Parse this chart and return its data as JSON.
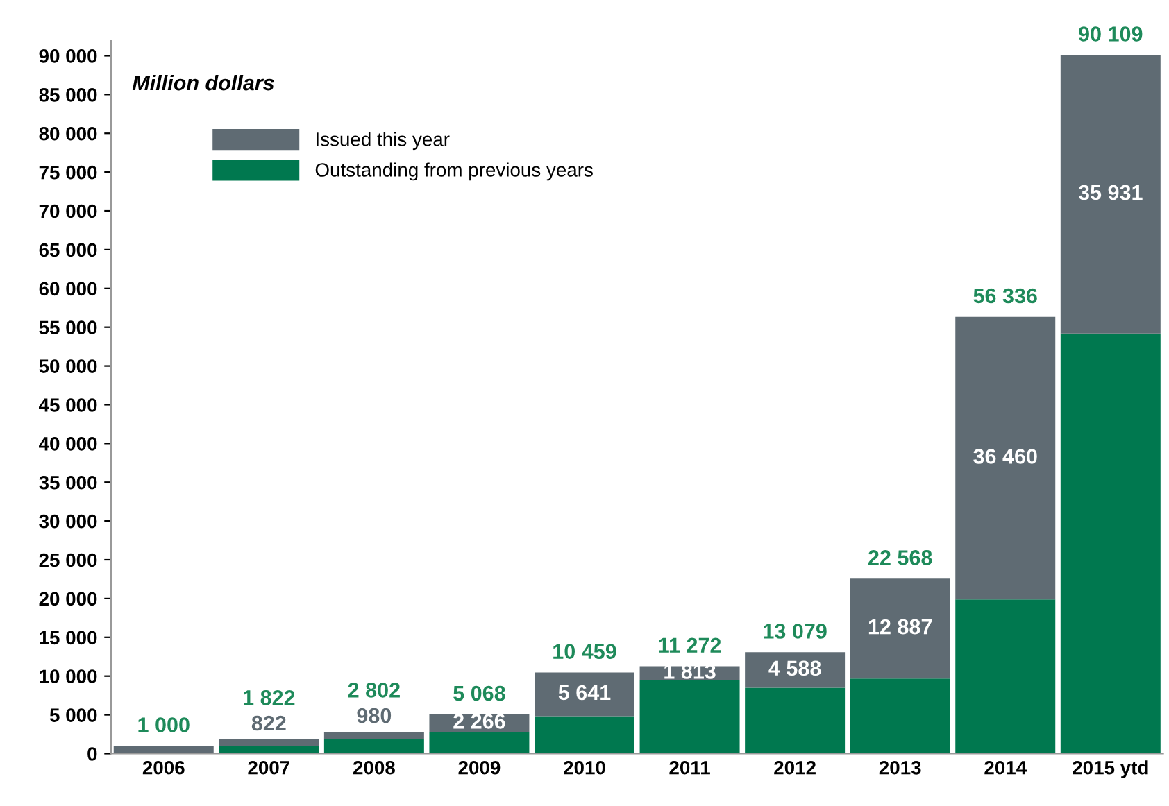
{
  "chart_data": {
    "type": "bar",
    "stacked": true,
    "categories": [
      "2006",
      "2007",
      "2008",
      "2009",
      "2010",
      "2011",
      "2012",
      "2013",
      "2014",
      "2015 ytd"
    ],
    "series": [
      {
        "name": "Outstanding from previous years",
        "color": "#00784f",
        "values": [
          0,
          1000,
          1822,
          2802,
          4818,
          9459,
          8491,
          9681,
          19876,
          54178
        ]
      },
      {
        "name": "Issued this year",
        "color": "#5f6b73",
        "values": [
          1000,
          822,
          980,
          2266,
          5641,
          1813,
          4588,
          12887,
          36460,
          35931
        ],
        "value_labels": [
          null,
          "822",
          "980",
          "2 266",
          "5 641",
          "1 813",
          "4 588",
          "12 887",
          "36 460",
          "35 931"
        ]
      }
    ],
    "totals": [
      "1 000",
      "1 822",
      "2 802",
      "5 068",
      "10 459",
      "11 272",
      "13 079",
      "22 568",
      "56 336",
      "90 109"
    ],
    "ylim": [
      0,
      92000
    ],
    "yticks": [
      0,
      {
        "value": 5000,
        "label": "5 000"
      },
      {
        "value": 10000,
        "label": "10 000"
      },
      {
        "value": 15000,
        "label": "15 000"
      },
      {
        "value": 20000,
        "label": "20 000"
      },
      {
        "value": 25000,
        "label": "25 000"
      },
      {
        "value": 30000,
        "label": "30 000"
      },
      {
        "value": 35000,
        "label": "35 000"
      },
      {
        "value": 40000,
        "label": "40 000"
      },
      {
        "value": 45000,
        "label": "45 000"
      },
      {
        "value": 50000,
        "label": "50 000"
      },
      {
        "value": 55000,
        "label": "55 000"
      },
      {
        "value": 60000,
        "label": "60 000"
      },
      {
        "value": 65000,
        "label": "65 000"
      },
      {
        "value": 70000,
        "label": "70 000"
      },
      {
        "value": 75000,
        "label": "75 000"
      },
      {
        "value": 80000,
        "label": "80 000"
      },
      {
        "value": 85000,
        "label": "85 000"
      },
      {
        "value": 90000,
        "label": "90 000"
      }
    ],
    "annotations": [
      "Million dollars"
    ],
    "legend": "top left",
    "grid": false
  }
}
